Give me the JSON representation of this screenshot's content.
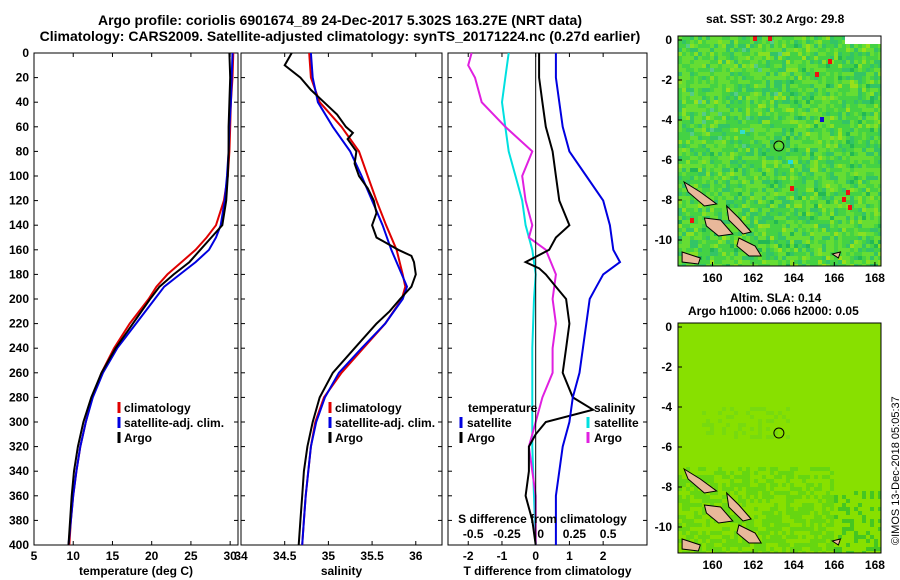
{
  "title_line1": "Argo profile: coriolis 6901674_89 24-Dec-2017 5.302S 163.27E (NRT data)",
  "title_line2": "Climatology: CARS2009. Satellite-adjusted climatology: synTS_20171224.nc (0.27d earlier)",
  "map1_title": "sat. SST: 30.2 Argo: 29.8",
  "map2_title_line1": "Altim. SLA: 0.14",
  "map2_title_line2": "Argo h1000: 0.066 h2000: 0.05",
  "timestamp": "©IMOS 13-Dec-2018 05:05:37",
  "colors": {
    "climatology": "#e00000",
    "satellite": "#0000e0",
    "argo": "#000000",
    "t_satellite": "#00e0e0",
    "s_satellite": "#e020e0"
  },
  "chart_data": [
    {
      "type": "line",
      "title": "",
      "xlabel": "temperature (deg C)",
      "ylabel": "",
      "xlim": [
        5,
        31
      ],
      "ylim": [
        400,
        0
      ],
      "xticks": [
        "5",
        "10",
        "15",
        "20",
        "25",
        "30"
      ],
      "yticks": [
        "0",
        "20",
        "40",
        "60",
        "80",
        "100",
        "120",
        "140",
        "160",
        "180",
        "200",
        "220",
        "240",
        "260",
        "280",
        "300",
        "320",
        "340",
        "360",
        "380",
        "400"
      ],
      "legend": {
        "position": "lower-right",
        "entries": [
          "climatology",
          "satellite-adj. clim.",
          "Argo"
        ]
      },
      "series": [
        {
          "name": "climatology",
          "color": "climatology",
          "depth": [
            0,
            20,
            40,
            60,
            80,
            100,
            120,
            140,
            150,
            160,
            170,
            180,
            190,
            200,
            220,
            240,
            260,
            280,
            300,
            320,
            340,
            360,
            380,
            400
          ],
          "values": [
            30.4,
            30.3,
            30.1,
            30.0,
            29.9,
            29.7,
            29.2,
            28.2,
            27.0,
            25.6,
            23.8,
            22.0,
            20.6,
            19.6,
            17.2,
            15.2,
            13.6,
            12.4,
            11.6,
            10.9,
            10.4,
            10.0,
            9.7,
            9.5
          ]
        },
        {
          "name": "satellite-adj. clim.",
          "color": "satellite",
          "depth": [
            0,
            20,
            40,
            60,
            80,
            100,
            120,
            140,
            150,
            160,
            170,
            180,
            190,
            200,
            220,
            240,
            260,
            280,
            300,
            320,
            340,
            360,
            380,
            400
          ],
          "values": [
            30.3,
            30.2,
            30.1,
            29.9,
            29.8,
            29.6,
            29.3,
            28.8,
            28.2,
            27.3,
            25.6,
            23.6,
            21.6,
            20.4,
            18.0,
            15.6,
            13.8,
            12.5,
            11.6,
            10.9,
            10.4,
            10.0,
            9.7,
            9.4
          ]
        },
        {
          "name": "Argo",
          "color": "argo",
          "depth": [
            0,
            20,
            40,
            60,
            80,
            100,
            120,
            140,
            150,
            160,
            170,
            180,
            190,
            200,
            220,
            240,
            260,
            280,
            300,
            320,
            340,
            360,
            380,
            400
          ],
          "values": [
            29.9,
            30.0,
            29.9,
            29.8,
            29.8,
            29.7,
            29.5,
            29.0,
            27.6,
            26.2,
            24.8,
            22.8,
            21.0,
            19.8,
            17.6,
            15.4,
            13.6,
            12.3,
            11.3,
            10.6,
            10.1,
            9.8,
            9.6,
            9.4
          ]
        }
      ]
    },
    {
      "type": "line",
      "title": "",
      "xlabel": "salinity",
      "ylabel": "",
      "xlim": [
        34,
        36.3
      ],
      "ylim": [
        400,
        0
      ],
      "xticks": [
        "34",
        "34.5",
        "35",
        "35.5",
        "36"
      ],
      "legend": {
        "position": "lower-right",
        "entries": [
          "climatology",
          "satellite-adj. clim.",
          "Argo"
        ]
      },
      "series": [
        {
          "name": "climatology",
          "color": "climatology",
          "depth": [
            0,
            20,
            40,
            60,
            80,
            100,
            120,
            140,
            160,
            180,
            190,
            200,
            220,
            240,
            260,
            280,
            300,
            320,
            340,
            360,
            380,
            400
          ],
          "values": [
            34.78,
            34.8,
            34.9,
            35.15,
            35.35,
            35.45,
            35.55,
            35.66,
            35.78,
            35.85,
            35.88,
            35.84,
            35.65,
            35.4,
            35.15,
            34.95,
            34.85,
            34.8,
            34.77,
            34.74,
            34.72,
            34.7
          ]
        },
        {
          "name": "satellite-adj. clim.",
          "color": "satellite",
          "depth": [
            0,
            20,
            40,
            60,
            80,
            100,
            120,
            140,
            160,
            180,
            190,
            200,
            220,
            240,
            260,
            280,
            300,
            320,
            340,
            360,
            380,
            400
          ],
          "values": [
            34.8,
            34.82,
            34.88,
            35.05,
            35.25,
            35.38,
            35.5,
            35.62,
            35.72,
            35.84,
            35.9,
            35.85,
            35.65,
            35.38,
            35.12,
            34.96,
            34.86,
            34.8,
            34.77,
            34.74,
            34.72,
            34.7
          ]
        },
        {
          "name": "Argo",
          "color": "argo",
          "depth": [
            0,
            10,
            20,
            30,
            40,
            50,
            60,
            65,
            70,
            80,
            90,
            100,
            110,
            120,
            130,
            140,
            150,
            160,
            165,
            170,
            180,
            190,
            200,
            210,
            220,
            240,
            260,
            280,
            300,
            320,
            340,
            360,
            380,
            400
          ],
          "values": [
            34.58,
            34.5,
            34.68,
            34.8,
            34.95,
            35.1,
            35.2,
            35.28,
            35.22,
            35.32,
            35.3,
            35.35,
            35.45,
            35.52,
            35.55,
            35.5,
            35.55,
            35.8,
            35.95,
            35.98,
            36.0,
            35.95,
            35.82,
            35.7,
            35.55,
            35.3,
            35.05,
            34.9,
            34.82,
            34.76,
            34.72,
            34.7,
            34.68,
            34.66
          ]
        }
      ]
    },
    {
      "type": "line",
      "title": "",
      "xlabel": "T difference from climatology",
      "xlabel_top": "S difference from climatology",
      "ylabel": "",
      "xlim": [
        -2.6,
        3.3
      ],
      "ylim": [
        400,
        0
      ],
      "xticks": [
        "-2",
        "-1",
        "0",
        "1",
        "2"
      ],
      "xticks_top": [
        "-0.5",
        "-0.25",
        "0",
        "0.25",
        "0.5"
      ],
      "legend": {
        "position": "lower",
        "entries_left_title": "temperature",
        "entries_left": [
          "satellite",
          "Argo"
        ],
        "entries_right_title": "salinity",
        "entries_right": [
          "satellite",
          "Argo"
        ]
      },
      "series": [
        {
          "name": "temperature satellite",
          "color": "t_satellite",
          "depth": [
            0,
            20,
            40,
            60,
            80,
            100,
            120,
            140,
            160,
            180,
            200,
            240,
            280,
            320,
            360,
            400
          ],
          "values": [
            -0.8,
            -0.9,
            -1.0,
            -0.9,
            -0.8,
            -0.6,
            -0.4,
            -0.3,
            -0.1,
            0.0,
            -0.05,
            -0.1,
            -0.1,
            -0.1,
            -0.05,
            0.0
          ]
        },
        {
          "name": "salinity satellite",
          "color": "s_satellite",
          "depth": [
            0,
            10,
            20,
            40,
            60,
            80,
            100,
            120,
            140,
            150,
            160,
            180,
            200,
            220,
            240,
            260,
            280,
            300,
            320,
            340,
            360,
            380,
            400
          ],
          "values": [
            -1.9,
            -2.0,
            -1.8,
            -1.6,
            -0.9,
            -0.1,
            -0.4,
            -0.3,
            -0.1,
            -0.2,
            0.3,
            0.6,
            0.5,
            0.6,
            0.5,
            0.5,
            0.2,
            0.0,
            -0.2,
            -0.1,
            0.0,
            0.0,
            0.0
          ]
        },
        {
          "name": "temperature Argo",
          "color": "argo",
          "depth": [
            0,
            20,
            40,
            60,
            80,
            100,
            120,
            140,
            150,
            160,
            170,
            175,
            180,
            190,
            200,
            220,
            240,
            260,
            280,
            290,
            300,
            310,
            320,
            340,
            360,
            380,
            400
          ],
          "values": [
            0.1,
            0.1,
            0.2,
            0.3,
            0.5,
            0.6,
            0.7,
            1.0,
            0.6,
            0.4,
            -0.3,
            0.1,
            0.3,
            0.6,
            0.9,
            1.0,
            0.9,
            0.8,
            1.1,
            1.7,
            0.3,
            0.0,
            -0.2,
            -0.2,
            -0.3,
            -0.1,
            0.0
          ]
        },
        {
          "name": "salinity Argo",
          "color": "satellite",
          "depth": [
            0,
            20,
            40,
            60,
            80,
            100,
            120,
            140,
            160,
            170,
            180,
            190,
            200,
            220,
            240,
            260,
            280,
            300,
            320,
            340,
            360,
            380,
            400
          ],
          "values": [
            0.6,
            0.6,
            0.7,
            0.8,
            1.0,
            1.5,
            2.0,
            2.2,
            2.3,
            2.5,
            2.0,
            1.8,
            1.6,
            1.5,
            1.4,
            1.3,
            1.1,
            1.0,
            0.8,
            0.7,
            0.6,
            0.6,
            0.6
          ]
        }
      ]
    },
    {
      "type": "heatmap",
      "title": "sat. SST: 30.2 Argo: 29.8",
      "xlim": [
        158.3,
        168.3
      ],
      "ylim": [
        -11.3,
        0.2
      ],
      "xticks": [
        "160",
        "162",
        "164",
        "166",
        "168"
      ],
      "yticks": [
        "0",
        "-2",
        "-4",
        "-6",
        "-8",
        "-10"
      ],
      "argo_position": [
        163.27,
        -5.302
      ]
    },
    {
      "type": "heatmap",
      "title": "Altim. SLA: 0.14 / Argo h1000: 0.066 h2000: 0.05",
      "xlim": [
        158.3,
        168.3
      ],
      "ylim": [
        -11.3,
        0.2
      ],
      "xticks": [
        "160",
        "162",
        "164",
        "166",
        "168"
      ],
      "yticks": [
        "0",
        "-2",
        "-4",
        "-6",
        "-8",
        "-10"
      ],
      "argo_position": [
        163.27,
        -5.302
      ]
    }
  ]
}
